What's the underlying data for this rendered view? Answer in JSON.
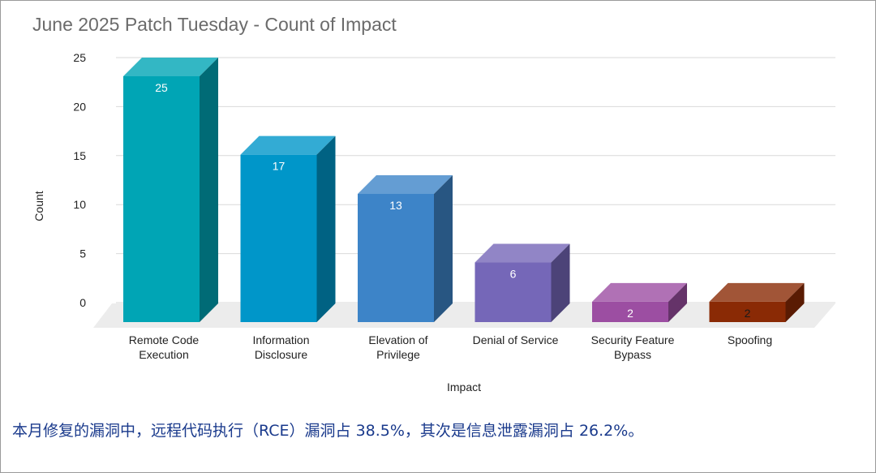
{
  "chart_data": {
    "type": "bar",
    "title": "June 2025 Patch Tuesday - Count of Impact",
    "xlabel": "Impact",
    "ylabel": "Count",
    "ylim": [
      0,
      25
    ],
    "yticks": [
      0,
      5,
      10,
      15,
      20,
      25
    ],
    "grid": true,
    "legend": "none",
    "style": "3d-bars",
    "categories": [
      [
        "Remote Code",
        "Execution"
      ],
      [
        "Information",
        "Disclosure"
      ],
      [
        "Elevation of",
        "Privilege"
      ],
      [
        "Denial of Service"
      ],
      [
        "Security Feature",
        "Bypass"
      ],
      [
        "Spoofing"
      ]
    ],
    "values": [
      25,
      17,
      13,
      6,
      2,
      2
    ],
    "colors": [
      "#00a5b5",
      "#0096c9",
      "#3d84c8",
      "#7567b8",
      "#9c4ea2",
      "#8a2a05"
    ],
    "label_colors": [
      "#ffffff",
      "#ffffff",
      "#ffffff",
      "#ffffff",
      "#ffffff",
      "#1a1a1a"
    ]
  },
  "caption": "本月修复的漏洞中，远程代码执行（RCE）漏洞占 38.5%，其次是信息泄露漏洞占 26.2%。"
}
